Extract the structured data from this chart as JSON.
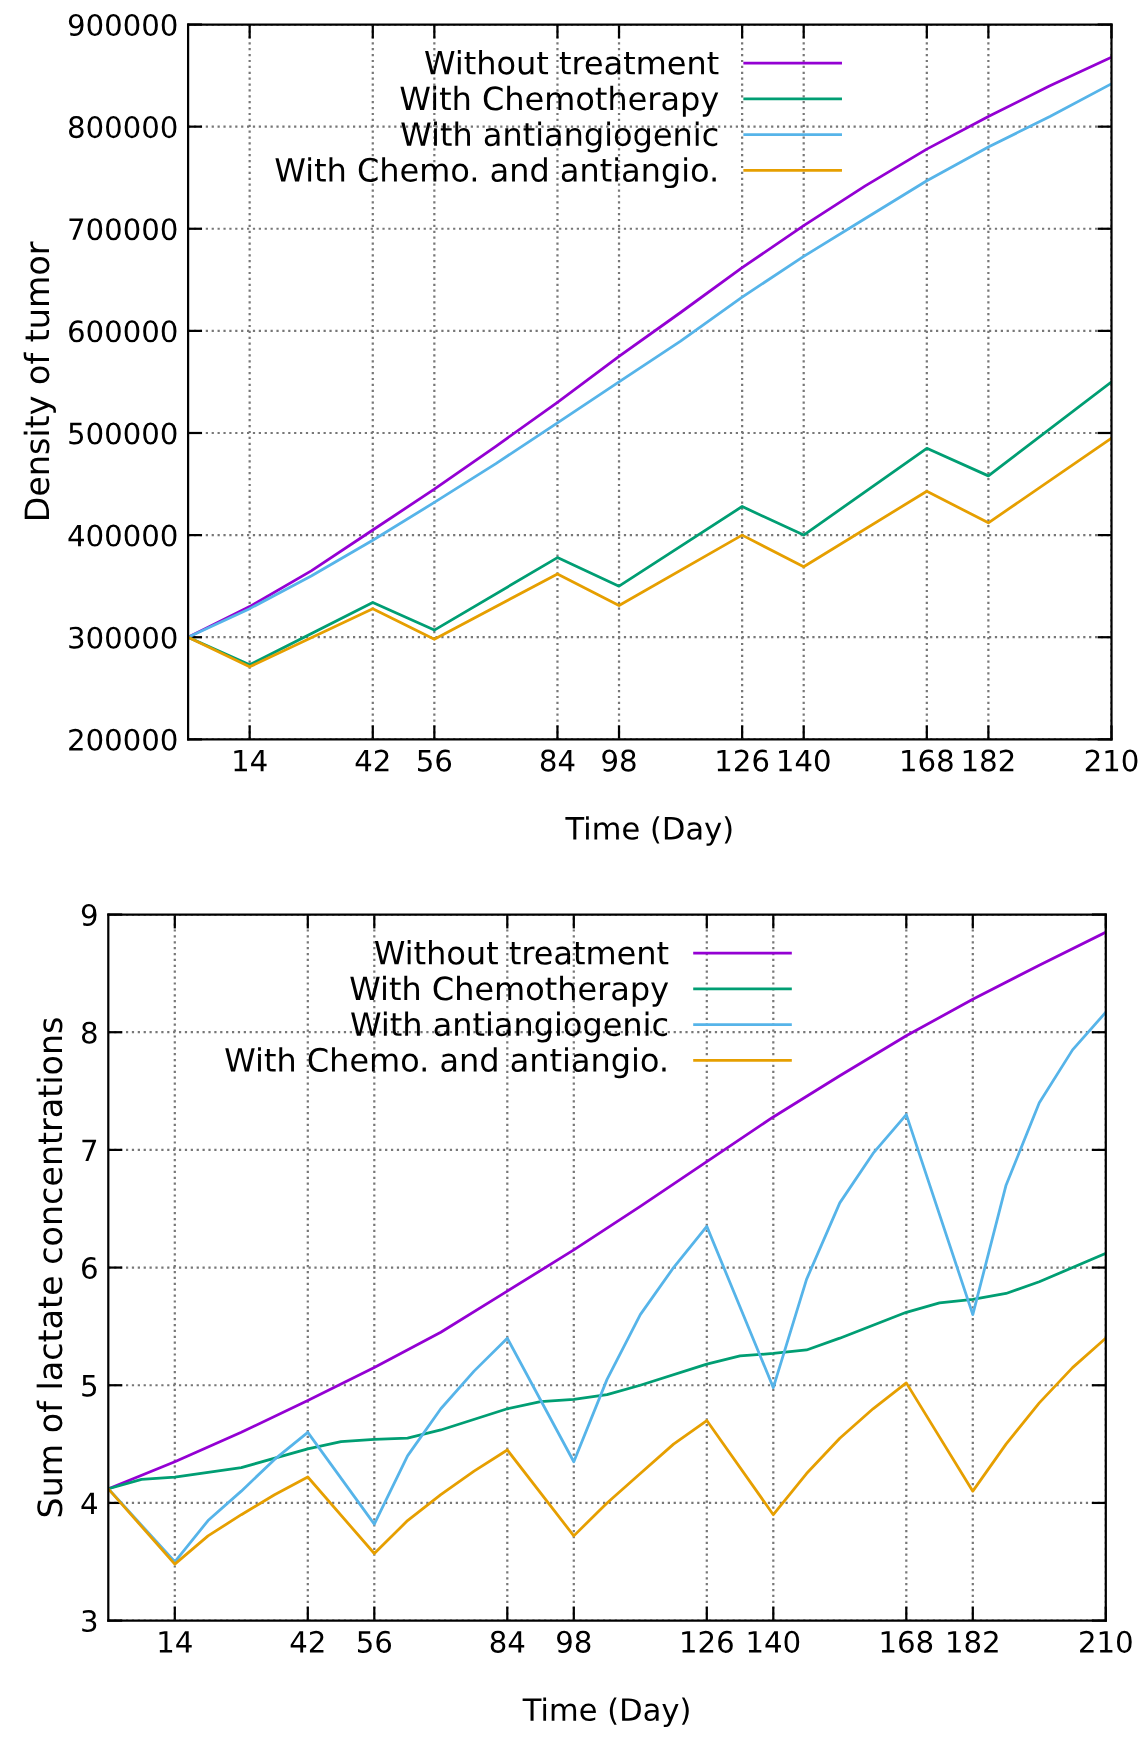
{
  "chart_data": [
    {
      "type": "line",
      "xlabel": "Time (Day)",
      "ylabel": "Density of tumor",
      "xlim": [
        0,
        210
      ],
      "xticks": [
        14,
        42,
        56,
        84,
        98,
        126,
        140,
        168,
        182,
        210
      ],
      "ylim": [
        200000,
        900000
      ],
      "yticks": [
        200000,
        300000,
        400000,
        500000,
        600000,
        700000,
        800000,
        900000
      ],
      "grid": true,
      "legend": "top",
      "line_style": "solid",
      "marker": "none",
      "series": [
        {
          "name": "Without treatment",
          "color": "#9400d3",
          "x": [
            0,
            14,
            28,
            42,
            56,
            70,
            84,
            98,
            112,
            126,
            140,
            154,
            168,
            182,
            196,
            210
          ],
          "values": [
            300000,
            330000,
            365000,
            405000,
            445000,
            487000,
            530000,
            575000,
            618000,
            662000,
            703000,
            742000,
            778000,
            810000,
            840000,
            868000
          ]
        },
        {
          "name": "With Chemotherapy",
          "color": "#009e73",
          "x": [
            0,
            14,
            42,
            56,
            84,
            98,
            126,
            140,
            168,
            182,
            210
          ],
          "values": [
            300000,
            273000,
            334000,
            307000,
            378000,
            350000,
            428000,
            400000,
            485000,
            458000,
            550000
          ]
        },
        {
          "name": "With antiangiogenic",
          "color": "#56b4e9",
          "x": [
            0,
            14,
            28,
            42,
            56,
            70,
            84,
            98,
            112,
            126,
            140,
            154,
            168,
            182,
            196,
            210
          ],
          "values": [
            300000,
            328000,
            360000,
            395000,
            432000,
            470000,
            510000,
            550000,
            590000,
            633000,
            673000,
            710000,
            747000,
            780000,
            810000,
            842000
          ]
        },
        {
          "name": "With Chemo. and antiangio.",
          "color": "#e69f00",
          "x": [
            0,
            14,
            42,
            56,
            84,
            98,
            126,
            140,
            168,
            182,
            210
          ],
          "values": [
            300000,
            271000,
            328000,
            298000,
            362000,
            331000,
            400000,
            369000,
            443000,
            412000,
            495000
          ]
        }
      ]
    },
    {
      "type": "line",
      "xlabel": "Time (Day)",
      "ylabel": "Sum of lactate concentrations",
      "xlim": [
        0,
        210
      ],
      "xticks": [
        14,
        42,
        56,
        84,
        98,
        126,
        140,
        168,
        182,
        210
      ],
      "ylim": [
        3,
        9
      ],
      "yticks": [
        3,
        4,
        5,
        6,
        7,
        8,
        9
      ],
      "grid": true,
      "legend": "top",
      "line_style": "solid",
      "marker": "none",
      "series": [
        {
          "name": "Without treatment",
          "color": "#9400d3",
          "x": [
            0,
            14,
            28,
            42,
            56,
            70,
            84,
            98,
            112,
            126,
            140,
            154,
            168,
            182,
            196,
            210
          ],
          "values": [
            4.12,
            4.35,
            4.6,
            4.87,
            5.15,
            5.45,
            5.8,
            6.15,
            6.52,
            6.9,
            7.28,
            7.63,
            7.97,
            8.28,
            8.57,
            8.85
          ]
        },
        {
          "name": "With Chemotherapy",
          "color": "#009e73",
          "x": [
            0,
            7,
            14,
            28,
            42,
            49,
            56,
            63,
            70,
            84,
            91,
            98,
            105,
            112,
            126,
            133,
            140,
            147,
            154,
            168,
            175,
            182,
            189,
            196,
            210
          ],
          "values": [
            4.12,
            4.2,
            4.22,
            4.3,
            4.46,
            4.52,
            4.54,
            4.55,
            4.62,
            4.8,
            4.86,
            4.88,
            4.92,
            5.0,
            5.18,
            5.25,
            5.27,
            5.3,
            5.4,
            5.62,
            5.7,
            5.73,
            5.78,
            5.88,
            6.12
          ]
        },
        {
          "name": "With antiangiogenic",
          "color": "#56b4e9",
          "x": [
            0,
            14,
            21,
            28,
            35,
            42,
            56,
            63,
            70,
            77,
            84,
            98,
            105,
            112,
            119,
            126,
            140,
            147,
            154,
            161,
            168,
            182,
            189,
            196,
            203,
            210
          ],
          "values": [
            4.12,
            3.5,
            3.85,
            4.1,
            4.37,
            4.6,
            3.82,
            4.4,
            4.8,
            5.12,
            5.4,
            4.35,
            5.05,
            5.6,
            6.0,
            6.35,
            4.98,
            5.9,
            6.55,
            6.97,
            7.3,
            5.6,
            6.7,
            7.4,
            7.85,
            8.17
          ]
        },
        {
          "name": "With Chemo. and antiangio.",
          "color": "#e69f00",
          "x": [
            0,
            14,
            21,
            28,
            35,
            42,
            56,
            63,
            70,
            77,
            84,
            98,
            105,
            112,
            119,
            126,
            140,
            147,
            154,
            161,
            168,
            182,
            189,
            196,
            203,
            210
          ],
          "values": [
            4.12,
            3.48,
            3.72,
            3.9,
            4.07,
            4.22,
            3.57,
            3.85,
            4.07,
            4.27,
            4.45,
            3.72,
            4.0,
            4.25,
            4.5,
            4.7,
            3.9,
            4.25,
            4.55,
            4.8,
            5.02,
            4.1,
            4.5,
            4.85,
            5.15,
            5.4
          ]
        }
      ]
    }
  ]
}
